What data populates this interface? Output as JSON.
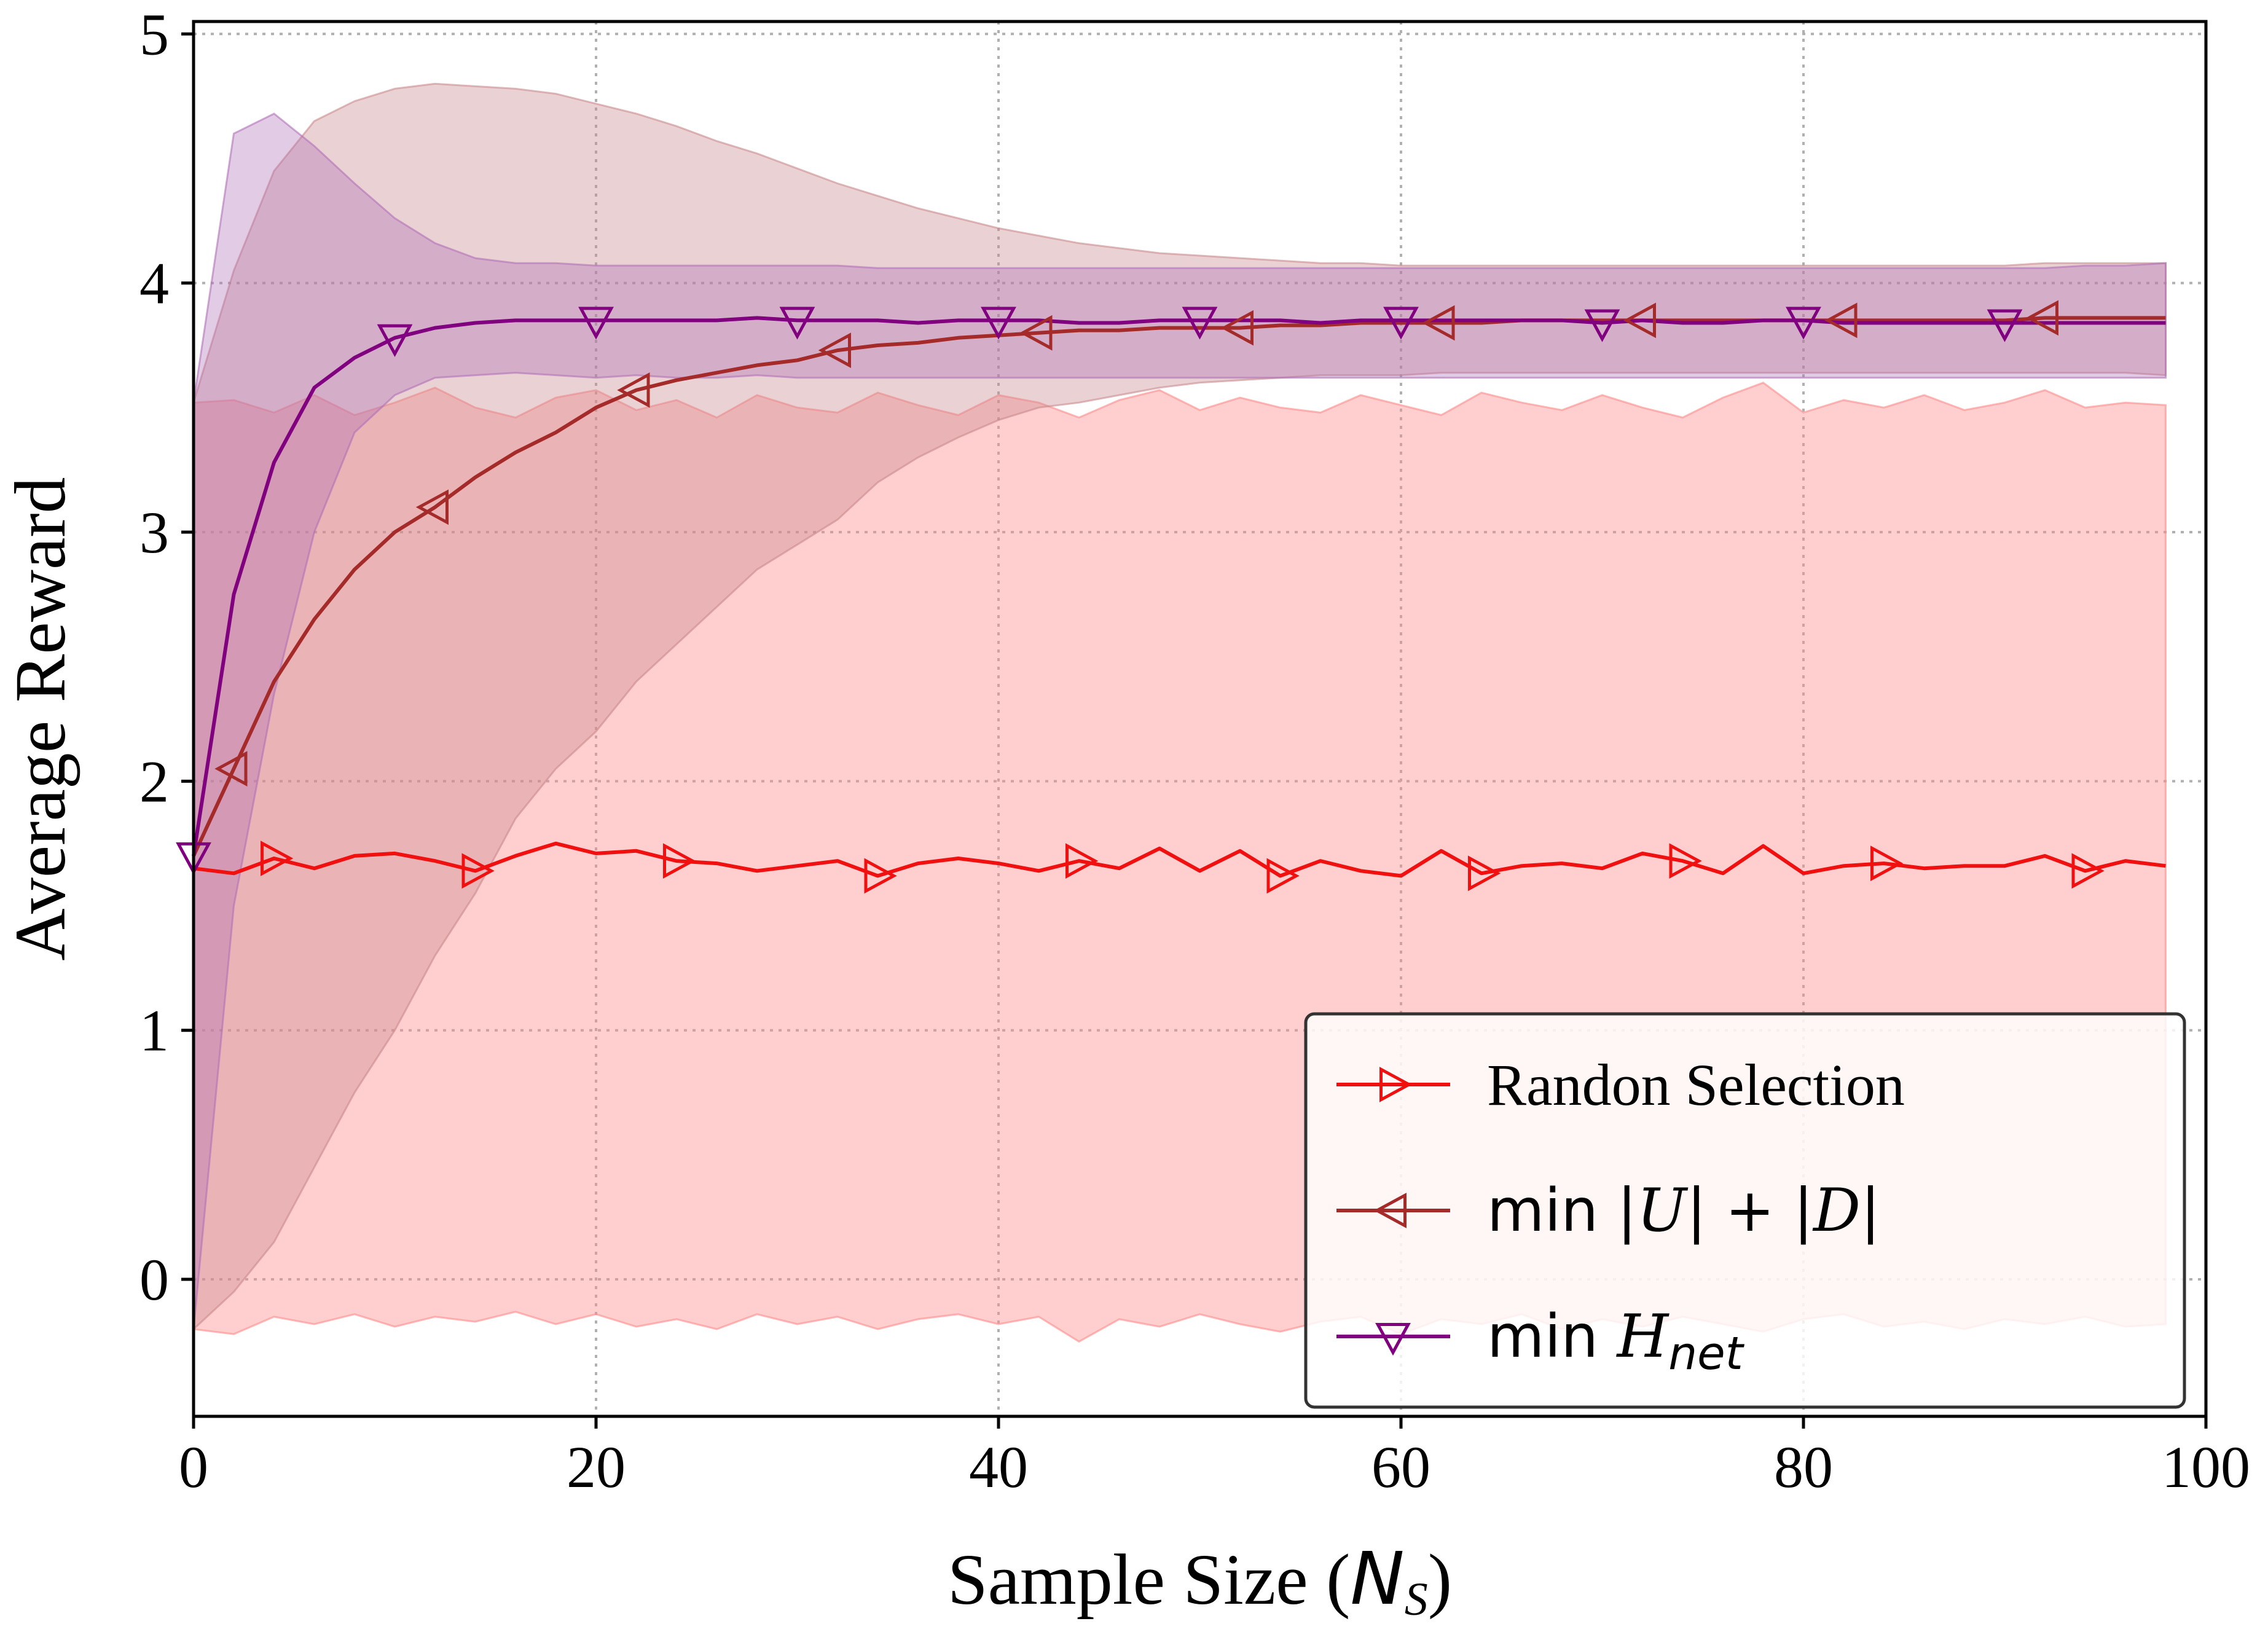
{
  "chart_data": {
    "type": "line",
    "xlabel": "Sample Size (N_S)",
    "xlabel_parts": {
      "prefix": "Sample Size (",
      "var": "N",
      "sub": "S",
      "suffix": ")"
    },
    "ylabel": "Average Reward",
    "xlim": [
      0,
      100
    ],
    "ylim": [
      -0.55,
      5.05
    ],
    "x_ticks": [
      0,
      20,
      40,
      60,
      80,
      100
    ],
    "y_ticks": [
      0,
      1,
      2,
      3,
      4,
      5
    ],
    "grid": true,
    "legend_position": "lower-right",
    "series": [
      {
        "name": "Randon Selection",
        "color": "#f01010",
        "marker": "triangle-right",
        "x": [
          0,
          2,
          4,
          6,
          8,
          10,
          12,
          14,
          16,
          18,
          20,
          22,
          24,
          26,
          28,
          30,
          32,
          34,
          36,
          38,
          40,
          42,
          44,
          46,
          48,
          50,
          52,
          54,
          56,
          58,
          60,
          62,
          64,
          66,
          68,
          70,
          72,
          74,
          76,
          78,
          80,
          82,
          84,
          86,
          88,
          90,
          92,
          94,
          96,
          98
        ],
        "y": [
          1.65,
          1.63,
          1.69,
          1.65,
          1.7,
          1.71,
          1.68,
          1.64,
          1.7,
          1.75,
          1.71,
          1.72,
          1.68,
          1.67,
          1.64,
          1.66,
          1.68,
          1.62,
          1.67,
          1.69,
          1.67,
          1.64,
          1.68,
          1.65,
          1.73,
          1.64,
          1.72,
          1.62,
          1.68,
          1.64,
          1.62,
          1.72,
          1.63,
          1.66,
          1.67,
          1.65,
          1.71,
          1.68,
          1.63,
          1.74,
          1.63,
          1.66,
          1.67,
          1.65,
          1.66,
          1.66,
          1.7,
          1.64,
          1.68,
          1.66
        ],
        "lower": [
          -0.2,
          -0.22,
          -0.15,
          -0.18,
          -0.14,
          -0.19,
          -0.15,
          -0.17,
          -0.13,
          -0.18,
          -0.14,
          -0.19,
          -0.16,
          -0.2,
          -0.14,
          -0.18,
          -0.15,
          -0.2,
          -0.16,
          -0.14,
          -0.18,
          -0.15,
          -0.25,
          -0.16,
          -0.19,
          -0.14,
          -0.18,
          -0.21,
          -0.17,
          -0.15,
          -0.22,
          -0.16,
          -0.18,
          -0.14,
          -0.2,
          -0.16,
          -0.19,
          -0.15,
          -0.18,
          -0.21,
          -0.16,
          -0.14,
          -0.19,
          -0.17,
          -0.2,
          -0.16,
          -0.18,
          -0.15,
          -0.19,
          -0.18
        ],
        "upper": [
          3.52,
          3.53,
          3.48,
          3.55,
          3.47,
          3.52,
          3.58,
          3.5,
          3.46,
          3.54,
          3.57,
          3.49,
          3.53,
          3.46,
          3.55,
          3.5,
          3.48,
          3.56,
          3.51,
          3.47,
          3.55,
          3.52,
          3.46,
          3.53,
          3.57,
          3.49,
          3.54,
          3.5,
          3.48,
          3.55,
          3.51,
          3.47,
          3.56,
          3.52,
          3.49,
          3.55,
          3.5,
          3.46,
          3.54,
          3.6,
          3.48,
          3.53,
          3.5,
          3.55,
          3.49,
          3.52,
          3.57,
          3.5,
          3.52,
          3.51
        ]
      },
      {
        "name": "min |U| + |D|",
        "color": "#a52a2a",
        "marker": "triangle-left",
        "x": [
          0,
          2,
          4,
          6,
          8,
          10,
          12,
          14,
          16,
          18,
          20,
          22,
          24,
          26,
          28,
          30,
          32,
          34,
          36,
          38,
          40,
          42,
          44,
          46,
          48,
          50,
          52,
          54,
          56,
          58,
          60,
          62,
          64,
          66,
          68,
          70,
          72,
          74,
          76,
          78,
          80,
          82,
          84,
          86,
          88,
          90,
          92,
          94,
          96,
          98
        ],
        "y": [
          1.7,
          2.05,
          2.4,
          2.65,
          2.85,
          3.0,
          3.1,
          3.22,
          3.32,
          3.4,
          3.5,
          3.57,
          3.61,
          3.64,
          3.67,
          3.69,
          3.73,
          3.75,
          3.76,
          3.78,
          3.79,
          3.8,
          3.81,
          3.81,
          3.82,
          3.82,
          3.82,
          3.83,
          3.83,
          3.84,
          3.84,
          3.84,
          3.84,
          3.85,
          3.85,
          3.85,
          3.85,
          3.85,
          3.85,
          3.85,
          3.85,
          3.85,
          3.85,
          3.85,
          3.85,
          3.85,
          3.86,
          3.86,
          3.86,
          3.86
        ],
        "lower": [
          -0.2,
          -0.05,
          0.15,
          0.45,
          0.75,
          1.0,
          1.3,
          1.55,
          1.85,
          2.05,
          2.2,
          2.4,
          2.55,
          2.7,
          2.85,
          2.95,
          3.05,
          3.2,
          3.3,
          3.38,
          3.45,
          3.5,
          3.52,
          3.55,
          3.58,
          3.6,
          3.61,
          3.62,
          3.63,
          3.63,
          3.63,
          3.64,
          3.64,
          3.64,
          3.64,
          3.64,
          3.64,
          3.64,
          3.64,
          3.64,
          3.64,
          3.64,
          3.64,
          3.64,
          3.64,
          3.64,
          3.64,
          3.64,
          3.64,
          3.63
        ],
        "upper": [
          3.52,
          4.05,
          4.45,
          4.65,
          4.73,
          4.78,
          4.8,
          4.79,
          4.78,
          4.76,
          4.72,
          4.68,
          4.63,
          4.57,
          4.52,
          4.46,
          4.4,
          4.35,
          4.3,
          4.26,
          4.22,
          4.19,
          4.16,
          4.14,
          4.12,
          4.11,
          4.1,
          4.09,
          4.08,
          4.08,
          4.07,
          4.07,
          4.07,
          4.07,
          4.07,
          4.07,
          4.07,
          4.07,
          4.07,
          4.07,
          4.07,
          4.07,
          4.07,
          4.07,
          4.07,
          4.07,
          4.08,
          4.08,
          4.08,
          4.08
        ]
      },
      {
        "name": "min H_net",
        "color": "#800080",
        "marker": "triangle-down",
        "x": [
          0,
          2,
          4,
          6,
          8,
          10,
          12,
          14,
          16,
          18,
          20,
          22,
          24,
          26,
          28,
          30,
          32,
          34,
          36,
          38,
          40,
          42,
          44,
          46,
          48,
          50,
          52,
          54,
          56,
          58,
          60,
          62,
          64,
          66,
          68,
          70,
          72,
          74,
          76,
          78,
          80,
          82,
          84,
          86,
          88,
          90,
          92,
          94,
          96,
          98
        ],
        "y": [
          1.7,
          2.75,
          3.28,
          3.58,
          3.7,
          3.78,
          3.82,
          3.84,
          3.85,
          3.85,
          3.85,
          3.85,
          3.85,
          3.85,
          3.86,
          3.85,
          3.85,
          3.85,
          3.84,
          3.85,
          3.85,
          3.85,
          3.84,
          3.84,
          3.85,
          3.85,
          3.85,
          3.85,
          3.84,
          3.85,
          3.85,
          3.85,
          3.85,
          3.85,
          3.85,
          3.84,
          3.85,
          3.84,
          3.84,
          3.85,
          3.85,
          3.84,
          3.84,
          3.84,
          3.84,
          3.84,
          3.84,
          3.84,
          3.84,
          3.84
        ],
        "lower": [
          -0.2,
          1.5,
          2.35,
          3.0,
          3.4,
          3.55,
          3.62,
          3.63,
          3.64,
          3.63,
          3.62,
          3.63,
          3.62,
          3.62,
          3.63,
          3.62,
          3.62,
          3.62,
          3.62,
          3.62,
          3.62,
          3.62,
          3.62,
          3.62,
          3.62,
          3.62,
          3.62,
          3.62,
          3.62,
          3.62,
          3.62,
          3.62,
          3.62,
          3.62,
          3.62,
          3.62,
          3.62,
          3.62,
          3.62,
          3.62,
          3.62,
          3.62,
          3.62,
          3.62,
          3.62,
          3.62,
          3.62,
          3.62,
          3.62,
          3.62
        ],
        "upper": [
          3.52,
          4.6,
          4.68,
          4.55,
          4.4,
          4.26,
          4.16,
          4.1,
          4.08,
          4.08,
          4.07,
          4.07,
          4.07,
          4.07,
          4.07,
          4.07,
          4.07,
          4.06,
          4.06,
          4.06,
          4.06,
          4.06,
          4.06,
          4.06,
          4.06,
          4.06,
          4.06,
          4.06,
          4.06,
          4.06,
          4.06,
          4.06,
          4.06,
          4.06,
          4.06,
          4.06,
          4.06,
          4.06,
          4.06,
          4.06,
          4.06,
          4.06,
          4.06,
          4.06,
          4.06,
          4.06,
          4.06,
          4.07,
          4.07,
          4.08
        ]
      }
    ],
    "legend": [
      {
        "name": "Randon Selection",
        "parts": [
          "Randon Selection"
        ]
      },
      {
        "name": "min |U| + |D|",
        "parts": [
          "min |",
          "U",
          "| + |",
          "D",
          "|"
        ]
      },
      {
        "name": "min H_net",
        "parts": [
          "min ",
          "H",
          "net"
        ]
      }
    ]
  }
}
